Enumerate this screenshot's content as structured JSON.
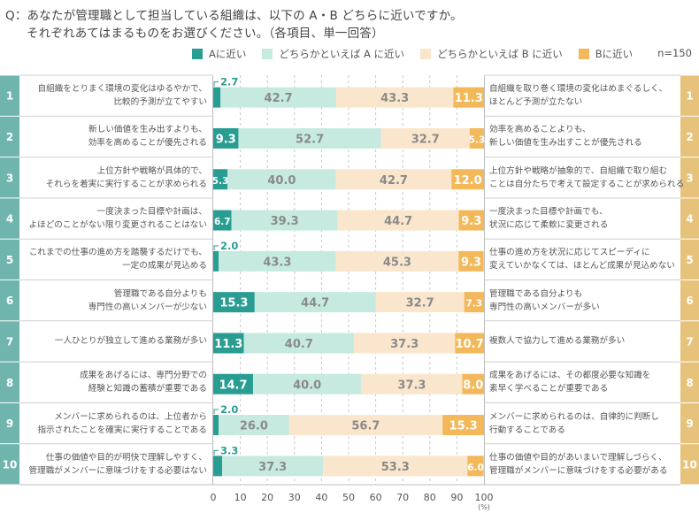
{
  "question": {
    "line1": "Q：あなたが管理職として担当している組織は、以下の A・B どちらに近いですか。",
    "line2": "それぞれあてはまるものをお選びください。（各項目、単一回答）"
  },
  "sample_size": "n=150",
  "colors": {
    "a": "#2a9d93",
    "a_lean": "#c6eadf",
    "b_lean": "#fae6cc",
    "b": "#f3b85a",
    "left_band": "#6fb5ae",
    "right_band": "#e6c27b",
    "label_inside_dark": "#ffffff",
    "label_inside_light": "#8a8a8a",
    "small_label": "#2a9d93"
  },
  "chart_data": {
    "type": "bar",
    "orientation": "horizontal",
    "stacked": true,
    "title": "",
    "xlabel": "(%)",
    "ylabel": "",
    "xlim": [
      0,
      100
    ],
    "x_ticks": [
      "0",
      "10",
      "20",
      "30",
      "40",
      "50",
      "60",
      "70",
      "80",
      "90",
      "100"
    ],
    "grid": true,
    "legend_position": "top",
    "categories": [
      "1",
      "2",
      "3",
      "4",
      "5",
      "6",
      "7",
      "8",
      "9",
      "10"
    ],
    "series": [
      {
        "name": "Aに近い",
        "values": [
          2.7,
          9.3,
          5.3,
          6.7,
          2.0,
          15.3,
          11.3,
          14.7,
          2.0,
          3.3
        ]
      },
      {
        "name": "どちらかといえば A に近い",
        "values": [
          42.7,
          52.7,
          40.0,
          39.3,
          43.3,
          44.7,
          40.7,
          40.0,
          26.0,
          37.3
        ]
      },
      {
        "name": "どちらかといえば B に近い",
        "values": [
          43.3,
          32.7,
          42.7,
          44.7,
          45.3,
          32.7,
          37.3,
          37.3,
          56.7,
          53.3
        ]
      },
      {
        "name": "Bに近い",
        "values": [
          11.3,
          5.3,
          12.0,
          9.3,
          9.3,
          7.3,
          10.7,
          8.0,
          15.3,
          6.0
        ]
      }
    ],
    "items": [
      {
        "no": "1",
        "a_text": [
          "自組織をとりまく環境の変化はゆるやかで、",
          "比較的予測が立てやすい"
        ],
        "b_text": [
          "自組織を取り巻く環境の変化はめまぐるしく、",
          "ほとんど予測が立たない"
        ]
      },
      {
        "no": "2",
        "a_text": [
          "新しい価値を生み出すよりも、",
          "効率を高めることが優先される"
        ],
        "b_text": [
          "効率を高めることよりも、",
          "新しい価値を生み出すことが優先される"
        ]
      },
      {
        "no": "3",
        "a_text": [
          "上位方針や戦略が具体的で、",
          "それらを着実に実行することが求められる"
        ],
        "b_text": [
          "上位方針や戦略が抽象的で、自組織で取り組む",
          "ことは自分たちで考えて設定することが求められる"
        ]
      },
      {
        "no": "4",
        "a_text": [
          "一度決まった目標や計画は、",
          "よほどのことがない限り変更されることはない"
        ],
        "b_text": [
          "一度決まった目標や計画でも、",
          "状況に応じて柔軟に変更される"
        ]
      },
      {
        "no": "5",
        "a_text": [
          "これまでの仕事の進め方を踏襲するだけでも、",
          "一定の成果が見込める"
        ],
        "b_text": [
          "仕事の進め方を状況に応じてスピーディに",
          "変えていかなくては、ほとんど成果が見込めない"
        ]
      },
      {
        "no": "6",
        "a_text": [
          "管理職である自分よりも",
          "専門性の高いメンバーが少ない"
        ],
        "b_text": [
          "管理職である自分よりも",
          "専門性の高いメンバーが多い"
        ]
      },
      {
        "no": "7",
        "a_text": [
          "一人ひとりが独立して進める業務が多い"
        ],
        "b_text": [
          "複数人で協力して進める業務が多い"
        ]
      },
      {
        "no": "8",
        "a_text": [
          "成果をあげるには、専門分野での",
          "経験と知識の蓄積が重要である"
        ],
        "b_text": [
          "成果をあげるには、その都度必要な知識を",
          "素早く学べることが重要である"
        ]
      },
      {
        "no": "9",
        "a_text": [
          "メンバーに求められるのは、上位者から",
          "指示されたことを確実に実行することである"
        ],
        "b_text": [
          "メンバーに求められるのは、自律的に判断し",
          "行動することである"
        ]
      },
      {
        "no": "10",
        "a_text": [
          "仕事の価値や目的が明快で理解しやすく、",
          "管理職がメンバーに意味づけをする必要はない"
        ],
        "b_text": [
          "仕事の価値や目的があいまいで理解しづらく、",
          "管理職がメンバーに意味づけをする必要がある"
        ]
      }
    ]
  }
}
